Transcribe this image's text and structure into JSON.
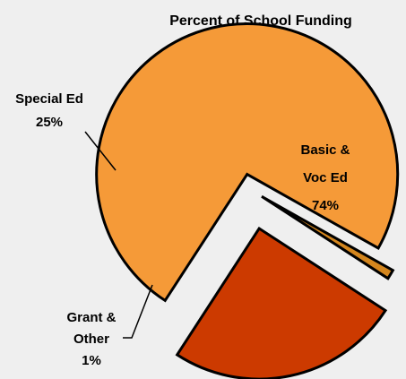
{
  "chart_data": {
    "type": "pie",
    "title": "Percent of School Funding",
    "slices": [
      {
        "label_lines": [
          "Basic &",
          "Voc Ed"
        ],
        "value_label": "74%",
        "value": 74,
        "color": "#f59a38"
      },
      {
        "label_lines": [
          "Grant &",
          "Other"
        ],
        "value_label": "1%",
        "value": 1,
        "color": "#d4861e"
      },
      {
        "label_lines": [
          "Special Ed"
        ],
        "value_label": "25%",
        "value": 25,
        "color": "#cc3a00"
      }
    ],
    "exploded": true,
    "legend": "none"
  },
  "colors": {
    "background": "#efefef",
    "outline": "#000000"
  }
}
